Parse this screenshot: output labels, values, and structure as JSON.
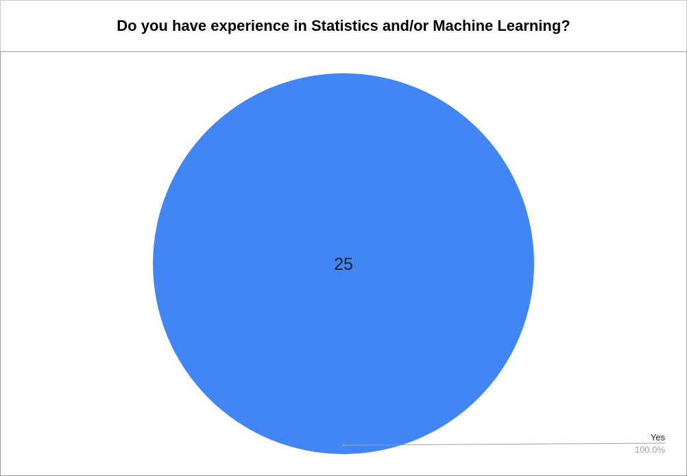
{
  "title": "Do you have experience in Statistics and/or Machine Learning?",
  "chart_data": {
    "type": "pie",
    "title": "Do you have experience in Statistics and/or Machine Learning?",
    "slices": [
      {
        "label": "Yes",
        "value": 25,
        "percent_label": "100.0%",
        "color": "#4285f4"
      }
    ],
    "legend": "callout-bottom-right"
  }
}
